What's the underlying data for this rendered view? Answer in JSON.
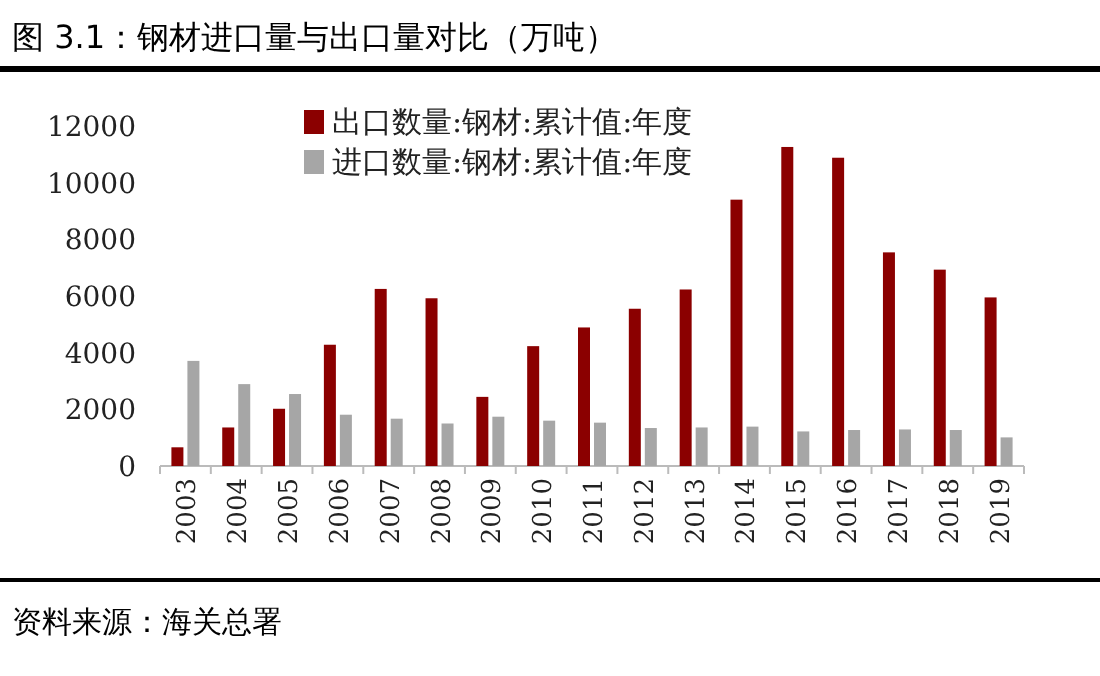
{
  "chart_data": {
    "type": "bar",
    "title": "图 3.1：钢材进口量与出口量对比（万吨）",
    "categories": [
      "2003",
      "2004",
      "2005",
      "2006",
      "2007",
      "2008",
      "2009",
      "2010",
      "2011",
      "2012",
      "2013",
      "2014",
      "2015",
      "2016",
      "2017",
      "2018",
      "2019"
    ],
    "series": [
      {
        "name": "出口数量:钢材:累计值:年度",
        "color": "#8b0000",
        "values": [
          660,
          1360,
          2020,
          4280,
          6250,
          5920,
          2440,
          4230,
          4890,
          5550,
          6230,
          9400,
          11260,
          10880,
          7540,
          6930,
          5950
        ]
      },
      {
        "name": "进口数量:钢材:累计值:年度",
        "color": "#a6a6a6",
        "values": [
          3710,
          2890,
          2540,
          1810,
          1670,
          1500,
          1740,
          1600,
          1530,
          1340,
          1360,
          1390,
          1220,
          1270,
          1290,
          1270,
          1010
        ]
      }
    ],
    "ylim": [
      0,
      12000
    ],
    "yticks": [
      0,
      2000,
      4000,
      6000,
      8000,
      10000,
      12000
    ],
    "legend": "top",
    "grid": false,
    "annotations": [
      "资料来源：海关总署"
    ]
  }
}
